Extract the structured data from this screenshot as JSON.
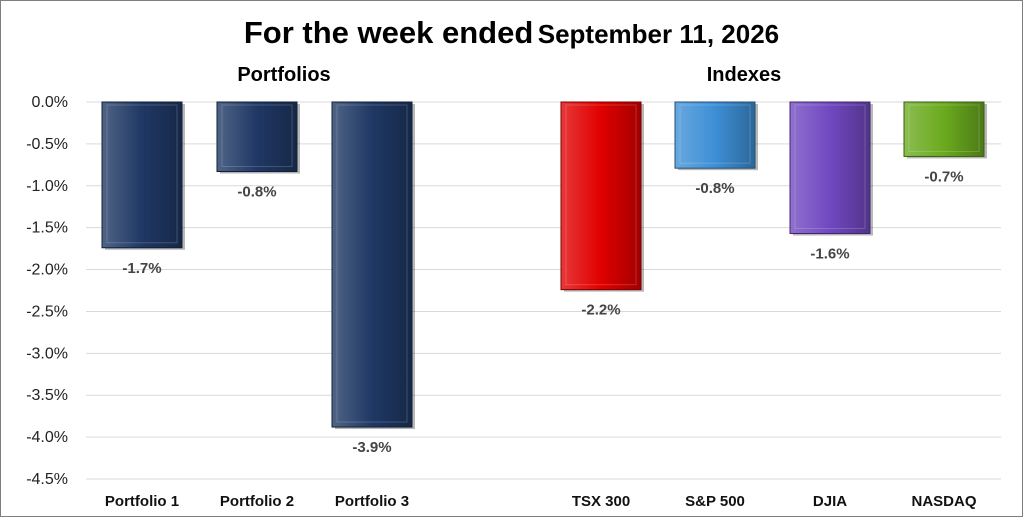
{
  "chart_data": {
    "type": "bar",
    "title": "For the week ended",
    "title_date": "September 11, 2026",
    "groups": [
      {
        "label": "Portfolios",
        "categories": [
          "Portfolio 1",
          "Portfolio 2",
          "Portfolio 3"
        ]
      },
      {
        "label": "Indexes",
        "categories": [
          "TSX 300",
          "S&P 500",
          "DJIA",
          "NASDAQ"
        ]
      }
    ],
    "categories": [
      "Portfolio 1",
      "Portfolio 2",
      "Portfolio 3",
      "TSX 300",
      "S&P 500",
      "DJIA",
      "NASDAQ"
    ],
    "values": [
      -1.74,
      -0.83,
      -3.88,
      -2.24,
      -0.79,
      -1.57,
      -0.65
    ],
    "data_labels": [
      "-1.7%",
      "-0.8%",
      "-3.9%",
      "-2.2%",
      "-0.8%",
      "-1.6%",
      "-0.7%"
    ],
    "colors": [
      "#1f3864",
      "#1f3864",
      "#1f3864",
      "#e00000",
      "#3d8fd6",
      "#7048c0",
      "#6aaa1e"
    ],
    "xlabel": "",
    "ylabel": "",
    "ylim": [
      -4.5,
      0
    ],
    "yticks": [
      0,
      -0.5,
      -1,
      -1.5,
      -2,
      -2.5,
      -3,
      -3.5,
      -4,
      -4.5
    ],
    "ytick_labels": [
      "0.0%",
      "-0.5%",
      "-1.0%",
      "-1.5%",
      "-2.0%",
      "-2.5%",
      "-3.0%",
      "-3.5%",
      "-4.0%",
      "-4.5%"
    ],
    "grid": true
  }
}
